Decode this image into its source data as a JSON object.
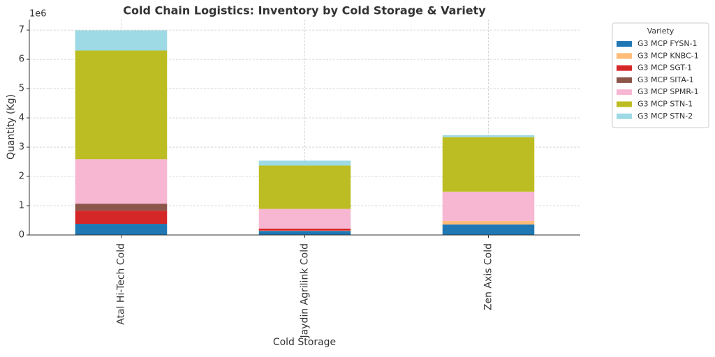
{
  "chart_data": {
    "type": "stacked_bar",
    "title": "Cold Chain Logistics: Inventory by Cold Storage & Variety",
    "x_label": "Cold Storage",
    "y_label": "Quantity (Kg)",
    "y_offset_label": "1e6",
    "legend_title": "Variety",
    "legend_position": "outside right",
    "grid": true,
    "categories": [
      "Atal Hi-Tech Cold",
      "Jaydin Agrilink Cold",
      "Zen Axis Cold"
    ],
    "series": [
      {
        "name": "G3 MCP FYSN-1",
        "color": "#1f77b4",
        "values": [
          0.38,
          0.14,
          0.36
        ]
      },
      {
        "name": "G3 MCP KNBC-1",
        "color": "#ffbb78",
        "values": [
          0,
          0.01,
          0.12
        ]
      },
      {
        "name": "G3 MCP SGT-1",
        "color": "#d62728",
        "values": [
          0.45,
          0.07,
          0
        ]
      },
      {
        "name": "G3 MCP SITA-1",
        "color": "#8c564b",
        "values": [
          0.24,
          0,
          0
        ]
      },
      {
        "name": "G3 MCP SPMR-1",
        "color": "#f7b6d2",
        "values": [
          1.52,
          0.67,
          1.0
        ]
      },
      {
        "name": "G3 MCP STN-1",
        "color": "#bcbd22",
        "values": [
          3.71,
          1.48,
          1.86
        ]
      },
      {
        "name": "G3 MCP STN-2",
        "color": "#9edae5",
        "values": [
          0.69,
          0.17,
          0.07
        ]
      }
    ],
    "ylim": [
      0,
      7.36
    ],
    "yticks": [
      0,
      1,
      2,
      3,
      4,
      5,
      6,
      7
    ]
  }
}
